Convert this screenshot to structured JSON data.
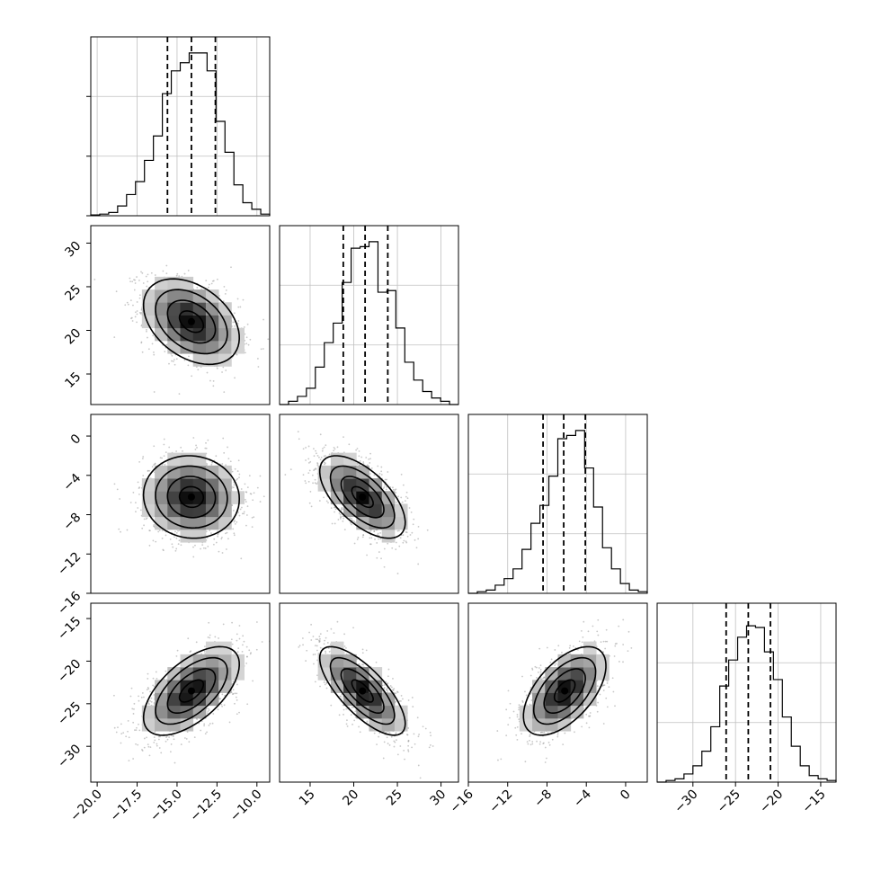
{
  "chart_data": {
    "type": "corner",
    "grid": true,
    "parameters": [
      {
        "index": 0,
        "range": [
          -20.4,
          -9.2
        ],
        "ticks": [
          -20.0,
          -17.5,
          -15.0,
          -12.5,
          -10.0
        ],
        "tick_labels": [
          "−20.0",
          "−17.5",
          "−15.0",
          "−12.5",
          "−10.0"
        ],
        "quantiles": [
          -15.6,
          -14.1,
          -12.6
        ],
        "histogram": {
          "bin_edges": [
            -20.4,
            -19.84,
            -19.28,
            -18.72,
            -18.16,
            -17.6,
            -17.04,
            -16.48,
            -15.92,
            -15.36,
            -14.8,
            -14.24,
            -13.68,
            -13.12,
            -12.56,
            -12.0,
            -11.44,
            -10.88,
            -10.32,
            -9.76,
            -9.2
          ],
          "relative_heights": [
            0.005,
            0.01,
            0.02,
            0.06,
            0.13,
            0.21,
            0.34,
            0.49,
            0.75,
            0.89,
            0.94,
            1.0,
            1.0,
            0.89,
            0.58,
            0.39,
            0.19,
            0.08,
            0.04,
            0.01
          ]
        }
      },
      {
        "index": 1,
        "range": [
          11.5,
          32.0
        ],
        "ticks": [
          15,
          20,
          25,
          30
        ],
        "tick_labels": [
          "15",
          "20",
          "25",
          "30"
        ],
        "quantiles": [
          18.8,
          21.3,
          23.9
        ],
        "histogram": {
          "bin_edges": [
            11.5,
            12.525,
            13.55,
            14.575,
            15.6,
            16.625,
            17.65,
            18.675,
            19.7,
            20.725,
            21.75,
            22.775,
            23.8,
            24.825,
            25.85,
            26.875,
            27.9,
            28.925,
            29.95,
            30.975,
            32.0
          ],
          "relative_heights": [
            0.0,
            0.02,
            0.05,
            0.1,
            0.23,
            0.38,
            0.5,
            0.75,
            0.96,
            0.97,
            1.0,
            0.69,
            0.7,
            0.47,
            0.26,
            0.15,
            0.08,
            0.04,
            0.02,
            0.0
          ]
        }
      },
      {
        "index": 2,
        "range": [
          -16.0,
          2.2
        ],
        "ticks": [
          -16,
          -12,
          -8,
          -4,
          0
        ],
        "tick_labels": [
          "−16",
          "−12",
          "−8",
          "−4",
          "0"
        ],
        "quantiles": [
          -8.4,
          -6.3,
          -4.1
        ],
        "histogram": {
          "bin_edges": [
            -16.0,
            -15.09,
            -14.18,
            -13.27,
            -12.36,
            -11.45,
            -10.54,
            -9.63,
            -8.72,
            -7.81,
            -6.9,
            -5.99,
            -5.08,
            -4.17,
            -3.26,
            -2.35,
            -1.44,
            -0.53,
            0.38,
            1.29,
            2.2
          ],
          "relative_heights": [
            0.0,
            0.01,
            0.02,
            0.05,
            0.09,
            0.15,
            0.27,
            0.43,
            0.54,
            0.72,
            0.95,
            0.97,
            1.0,
            0.77,
            0.53,
            0.28,
            0.15,
            0.06,
            0.02,
            0.01
          ]
        }
      },
      {
        "index": 3,
        "range": [
          -34.2,
          -13.2
        ],
        "ticks": [
          -30,
          -25,
          -20,
          -15
        ],
        "tick_labels": [
          "−30",
          "−25",
          "−20",
          "−15"
        ],
        "quantiles": [
          -26.1,
          -23.5,
          -20.9
        ],
        "histogram": {
          "bin_edges": [
            -34.2,
            -33.15,
            -32.1,
            -31.05,
            -30.0,
            -28.95,
            -27.9,
            -26.85,
            -25.8,
            -24.75,
            -23.7,
            -22.65,
            -21.6,
            -20.55,
            -19.5,
            -18.45,
            -17.4,
            -16.35,
            -15.3,
            -14.25,
            -13.2
          ],
          "relative_heights": [
            0.0,
            0.01,
            0.02,
            0.05,
            0.1,
            0.19,
            0.34,
            0.59,
            0.75,
            0.89,
            0.96,
            0.95,
            0.8,
            0.63,
            0.4,
            0.22,
            0.1,
            0.04,
            0.02,
            0.01
          ]
        }
      }
    ],
    "pairs": [
      {
        "row": 1,
        "col": 0,
        "mean": [
          -14.1,
          21.0
        ],
        "std": [
          1.5,
          2.45
        ],
        "corr": -0.38
      },
      {
        "row": 2,
        "col": 0,
        "mean": [
          -14.1,
          -6.2
        ],
        "std": [
          1.5,
          2.1
        ],
        "corr": -0.05
      },
      {
        "row": 2,
        "col": 1,
        "mean": [
          21.0,
          -6.2
        ],
        "std": [
          2.45,
          2.1
        ],
        "corr": -0.62
      },
      {
        "row": 3,
        "col": 0,
        "mean": [
          -14.1,
          -23.5
        ],
        "std": [
          1.5,
          2.6
        ],
        "corr": 0.6
      },
      {
        "row": 3,
        "col": 1,
        "mean": [
          21.0,
          -23.5
        ],
        "std": [
          2.45,
          2.6
        ],
        "corr": -0.74
      },
      {
        "row": 3,
        "col": 2,
        "mean": [
          -6.2,
          -23.5
        ],
        "std": [
          2.1,
          2.6
        ],
        "corr": 0.57
      }
    ],
    "contour_sigma_levels": [
      0.5,
      1.0,
      1.5,
      2.0
    ]
  }
}
